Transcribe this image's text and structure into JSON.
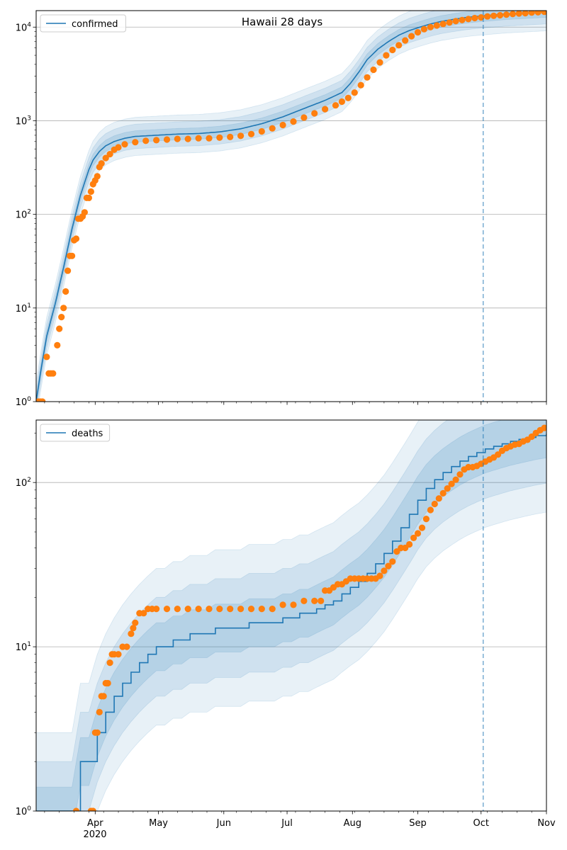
{
  "title": "Hawaii 28 days",
  "colors": {
    "model": "#1f77b4",
    "observed": "#ff7f0e",
    "band": "#1f77b4",
    "grid": "#b0b0b0",
    "forecast_line": "#1f77b4"
  },
  "x_axis": {
    "tick_labels": [
      "Apr",
      "May",
      "Jun",
      "Jul",
      "Aug",
      "Sep",
      "Oct",
      "Nov"
    ],
    "tick_days": [
      31,
      61,
      92,
      122,
      153,
      184,
      214,
      245
    ],
    "year_label": "2020",
    "range_days": [
      3,
      245
    ],
    "forecast_day": 215,
    "note": "day index = days since 2020-03-01"
  },
  "chart_data": [
    {
      "type": "line",
      "scale": "log",
      "legend": "confirmed",
      "legend_position": "top-left",
      "ylim": [
        1,
        15000
      ],
      "y_tick_labels": [
        "10^0",
        "10^1",
        "10^2",
        "10^3",
        "10^4"
      ],
      "y_tick_values": [
        1,
        10,
        100,
        1000,
        10000
      ],
      "grid": "y",
      "model": {
        "days": [
          3,
          5,
          8,
          12,
          16,
          20,
          24,
          28,
          30,
          33,
          36,
          40,
          45,
          50,
          60,
          70,
          80,
          90,
          100,
          110,
          120,
          130,
          140,
          148,
          152,
          156,
          160,
          165,
          170,
          175,
          180,
          185,
          190,
          195,
          200,
          205,
          210,
          215,
          220,
          225,
          230,
          235,
          240,
          245
        ],
        "values": [
          1,
          2,
          5,
          11,
          27,
          70,
          160,
          300,
          380,
          470,
          540,
          600,
          650,
          680,
          700,
          720,
          730,
          760,
          820,
          930,
          1100,
          1350,
          1650,
          2000,
          2500,
          3300,
          4500,
          5800,
          7000,
          8200,
          9200,
          10000,
          10800,
          11500,
          12000,
          12500,
          12900,
          13200,
          13500,
          13800,
          14000,
          14200,
          14400,
          14600
        ]
      },
      "observed": {
        "days": [
          4,
          5,
          6,
          8,
          9,
          10,
          11,
          13,
          14,
          15,
          16,
          17,
          18,
          19,
          20,
          21,
          22,
          23,
          24,
          25,
          26,
          27,
          28,
          29,
          30,
          31,
          32,
          33,
          34,
          36,
          38,
          40,
          42,
          45,
          50,
          55,
          60,
          65,
          70,
          75,
          80,
          85,
          90,
          95,
          100,
          105,
          110,
          115,
          120,
          125,
          130,
          135,
          140,
          145,
          148,
          151,
          154,
          157,
          160,
          163,
          166,
          169,
          172,
          175,
          178,
          181,
          184,
          187,
          190,
          193,
          196,
          199,
          202,
          205,
          208,
          211,
          214,
          217,
          220,
          223,
          226,
          229,
          232,
          235,
          238,
          241,
          244
        ],
        "values": [
          1,
          1,
          1,
          3,
          2,
          2,
          2,
          4,
          6,
          8,
          10,
          15,
          25,
          36,
          36,
          53,
          55,
          90,
          90,
          95,
          105,
          150,
          150,
          175,
          210,
          230,
          255,
          320,
          350,
          400,
          440,
          490,
          520,
          560,
          590,
          610,
          620,
          630,
          640,
          640,
          650,
          650,
          660,
          670,
          690,
          720,
          770,
          830,
          900,
          980,
          1080,
          1200,
          1330,
          1460,
          1600,
          1750,
          2000,
          2400,
          2900,
          3500,
          4200,
          5000,
          5700,
          6400,
          7200,
          8000,
          8800,
          9500,
          10000,
          10400,
          10800,
          11200,
          11600,
          11900,
          12200,
          12500,
          12700,
          13000,
          13200,
          13400,
          13600,
          13800,
          14000,
          14100,
          14300,
          14400,
          14600
        ]
      }
    },
    {
      "type": "line",
      "scale": "log",
      "legend": "deaths",
      "legend_position": "top-left",
      "ylim": [
        1,
        240
      ],
      "y_tick_labels": [
        "10^0",
        "10^1",
        "10^2"
      ],
      "y_tick_values": [
        1,
        10,
        100
      ],
      "grid": "y",
      "model": {
        "days": [
          3,
          20,
          24,
          28,
          32,
          36,
          40,
          44,
          48,
          52,
          56,
          60,
          64,
          68,
          72,
          76,
          80,
          84,
          88,
          92,
          96,
          100,
          104,
          108,
          112,
          116,
          120,
          124,
          128,
          132,
          136,
          140,
          144,
          148,
          152,
          156,
          160,
          164,
          168,
          172,
          176,
          180,
          184,
          188,
          192,
          196,
          200,
          204,
          208,
          212,
          216,
          220,
          224,
          228,
          232,
          236,
          240,
          245
        ],
        "values": [
          1,
          1,
          2,
          2,
          3,
          4,
          5,
          6,
          7,
          8,
          9,
          10,
          10,
          11,
          11,
          12,
          12,
          12,
          13,
          13,
          13,
          13,
          14,
          14,
          14,
          14,
          15,
          15,
          16,
          16,
          17,
          18,
          19,
          21,
          23,
          25,
          28,
          32,
          37,
          44,
          53,
          64,
          78,
          92,
          104,
          115,
          125,
          135,
          144,
          152,
          160,
          166,
          172,
          178,
          183,
          188,
          193,
          198
        ]
      },
      "observed": {
        "days": [
          22,
          29,
          30,
          31,
          32,
          33,
          34,
          35,
          36,
          37,
          38,
          39,
          40,
          42,
          44,
          46,
          48,
          49,
          50,
          52,
          54,
          56,
          58,
          60,
          65,
          70,
          75,
          80,
          85,
          90,
          95,
          100,
          105,
          110,
          115,
          120,
          125,
          130,
          135,
          138,
          140,
          142,
          144,
          146,
          148,
          150,
          152,
          154,
          156,
          158,
          160,
          162,
          164,
          166,
          168,
          170,
          172,
          174,
          176,
          178,
          180,
          182,
          184,
          186,
          188,
          190,
          192,
          194,
          196,
          198,
          200,
          202,
          204,
          206,
          208,
          210,
          212,
          214,
          216,
          218,
          220,
          222,
          224,
          226,
          228,
          230,
          232,
          234,
          236,
          238,
          240,
          242,
          244
        ],
        "values": [
          1,
          1,
          1,
          3,
          3,
          4,
          5,
          5,
          6,
          6,
          8,
          9,
          9,
          9,
          10,
          10,
          12,
          13,
          14,
          16,
          16,
          17,
          17,
          17,
          17,
          17,
          17,
          17,
          17,
          17,
          17,
          17,
          17,
          17,
          17,
          18,
          18,
          19,
          19,
          19,
          22,
          22,
          23,
          24,
          24,
          25,
          26,
          26,
          26,
          26,
          26,
          26,
          26,
          27,
          29,
          31,
          33,
          38,
          40,
          40,
          42,
          46,
          49,
          53,
          60,
          68,
          74,
          80,
          86,
          92,
          98,
          104,
          112,
          120,
          124,
          124,
          126,
          130,
          134,
          138,
          142,
          148,
          156,
          162,
          166,
          170,
          172,
          178,
          182,
          190,
          200,
          208,
          215
        ]
      }
    }
  ]
}
